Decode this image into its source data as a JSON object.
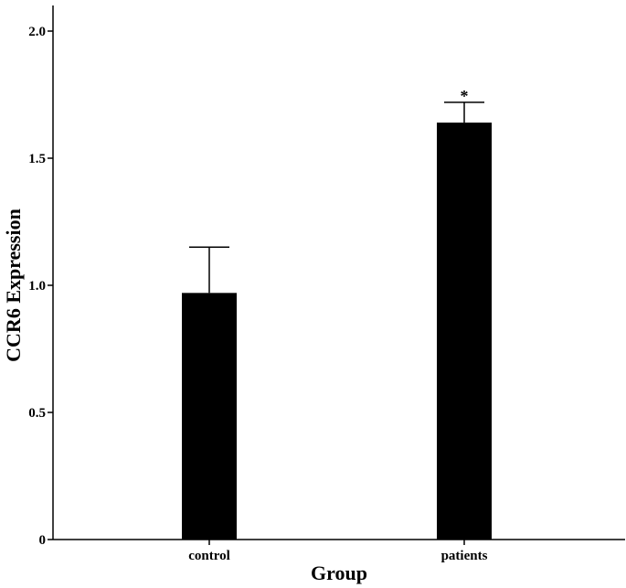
{
  "chart_data": {
    "type": "bar",
    "categories": [
      "control",
      "patients"
    ],
    "values": [
      0.97,
      1.64
    ],
    "error_upper": [
      1.15,
      1.72
    ],
    "annotations": [
      "",
      "*"
    ],
    "xlabel": "Group",
    "ylabel": "CCR6 Expression",
    "ylim": [
      0,
      2.0
    ],
    "yticks": [
      0,
      0.5,
      1.0,
      1.5,
      2.0
    ],
    "ytick_labels": [
      "0",
      "0.5",
      "1.0",
      "1.5",
      "2.0"
    ],
    "grid": false,
    "bar_color": "#000000"
  }
}
